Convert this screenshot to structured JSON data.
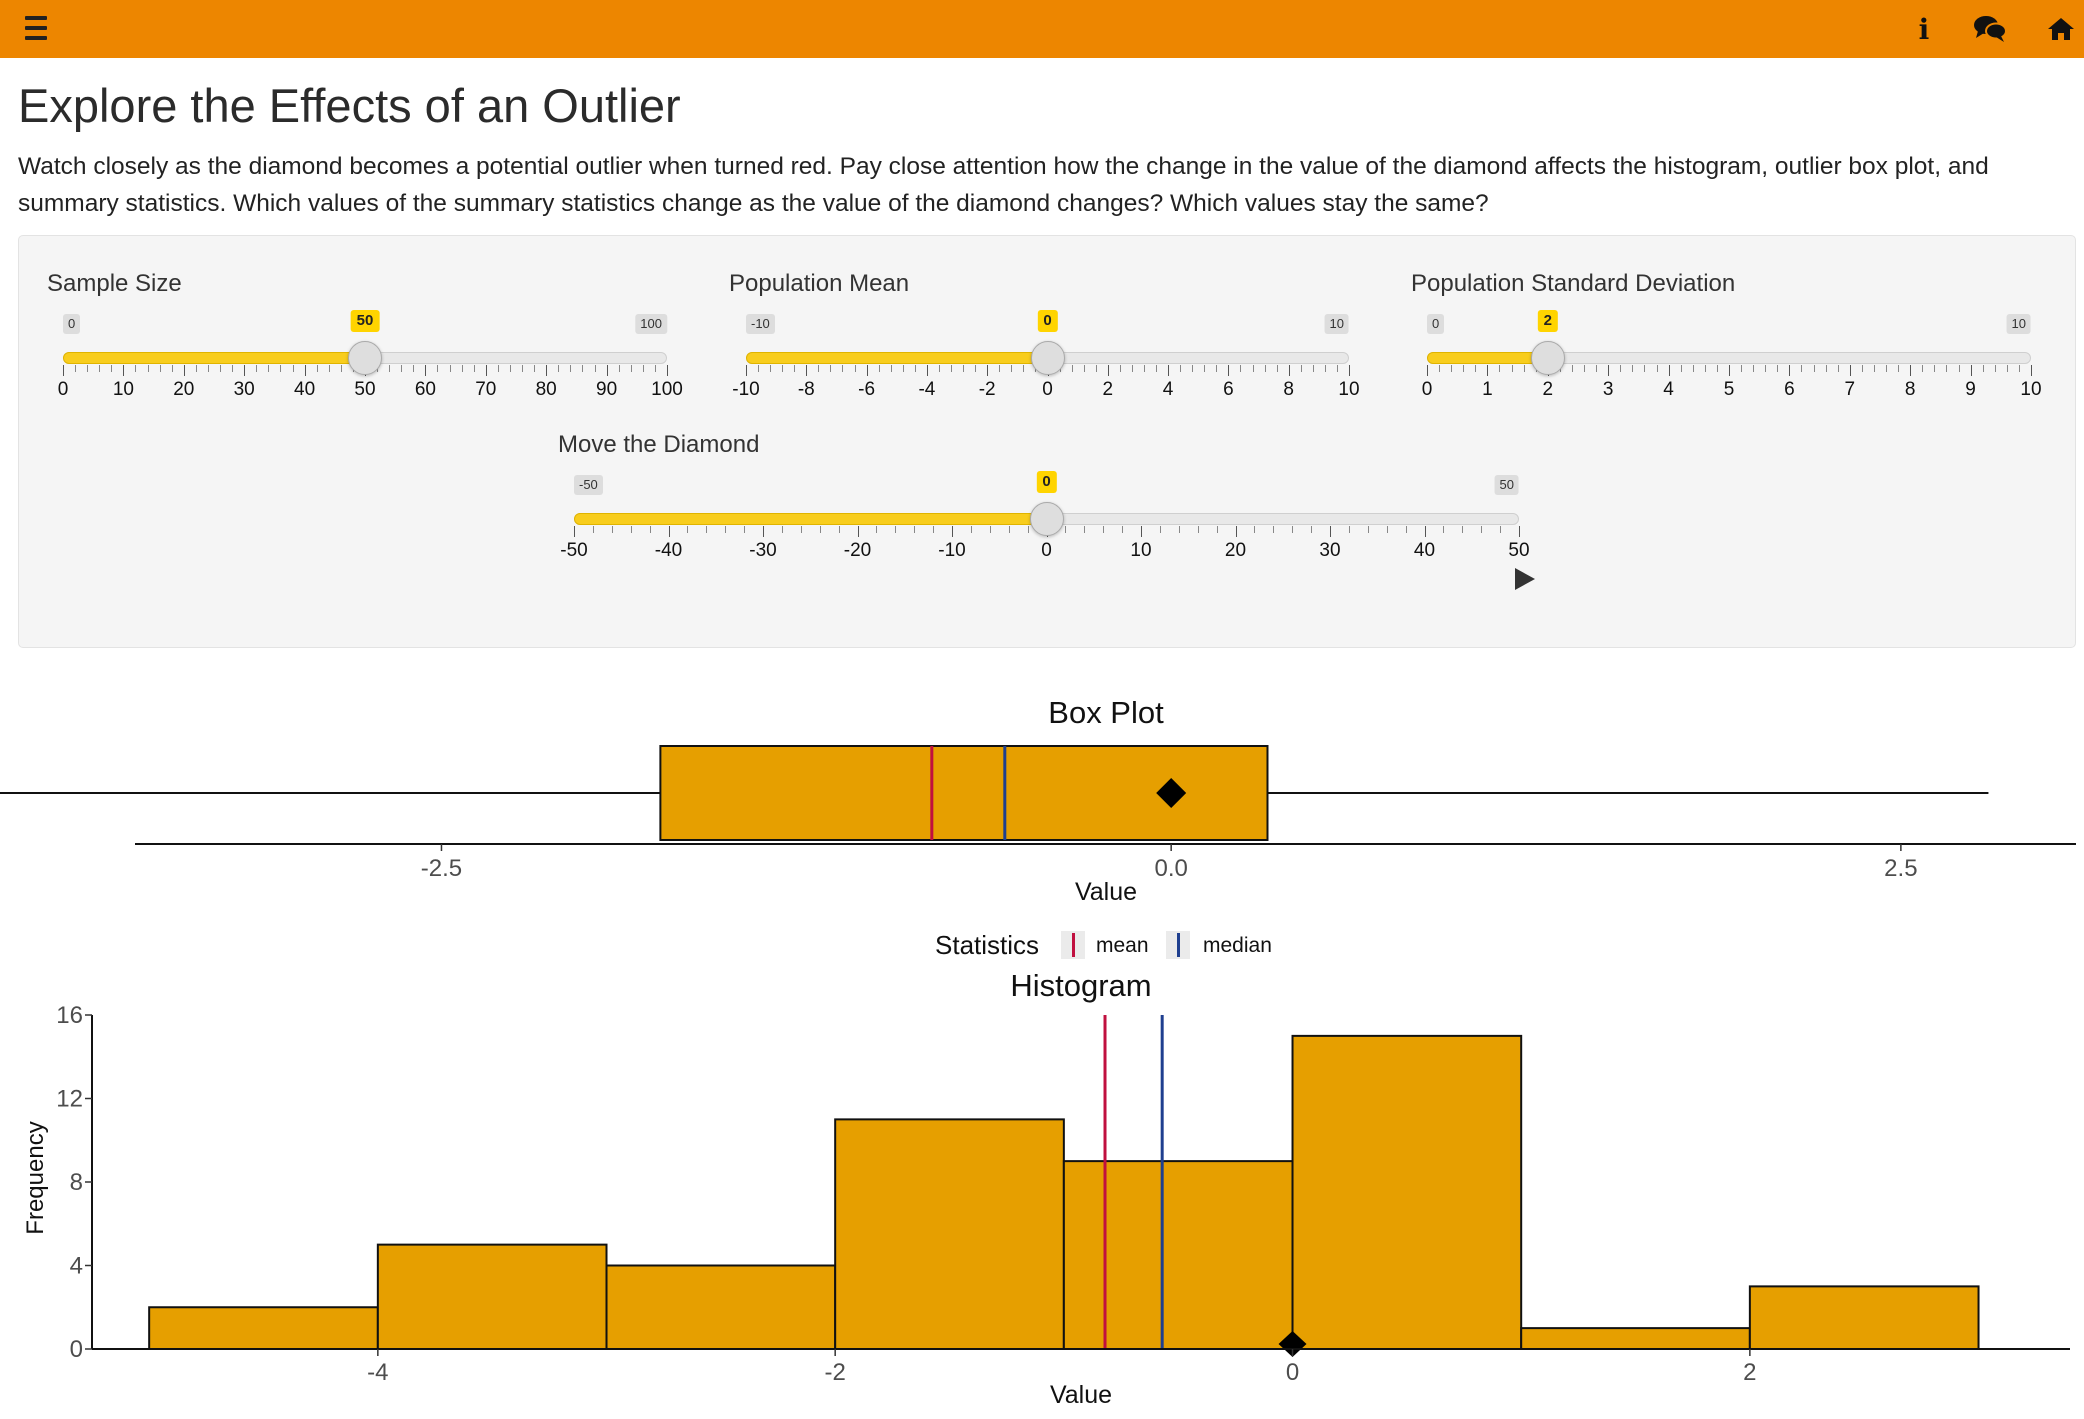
{
  "header": {
    "menu_icon": "hamburger-menu-icon",
    "info_icon": "info-icon",
    "info_glyph": "i",
    "chat_icon": "comments-icon",
    "home_icon": "home-icon",
    "bar_color": "#ED8600"
  },
  "page": {
    "title": "Explore the Effects of an Outlier",
    "description": "Watch closely as the diamond becomes a potential outlier when turned red. Pay close attention how the change in the value of the diamond affects the histogram, outlier box plot, and summary statistics. Which values of the summary statistics change as the value of the diamond changes? Which values stay the same?"
  },
  "controls": {
    "sample_size": {
      "label": "Sample Size",
      "min": 0,
      "max": 100,
      "value": 50,
      "min_label": "0",
      "max_label": "100",
      "value_label": "50",
      "ticks": [
        0,
        10,
        20,
        30,
        40,
        50,
        60,
        70,
        80,
        90,
        100
      ],
      "tick_labels": [
        "0",
        "10",
        "20",
        "30",
        "40",
        "50",
        "60",
        "70",
        "80",
        "90",
        "100"
      ]
    },
    "pop_mean": {
      "label": "Population Mean",
      "min": -10,
      "max": 10,
      "value": 0,
      "min_label": "-10",
      "max_label": "10",
      "value_label": "0",
      "ticks": [
        -10,
        -8,
        -6,
        -4,
        -2,
        0,
        2,
        4,
        6,
        8,
        10
      ],
      "tick_labels": [
        "-10",
        "-8",
        "-6",
        "-4",
        "-2",
        "0",
        "2",
        "4",
        "6",
        "8",
        "10"
      ]
    },
    "pop_sd": {
      "label": "Population Standard Deviation",
      "min": 0,
      "max": 10,
      "value": 2,
      "min_label": "0",
      "max_label": "10",
      "value_label": "2",
      "ticks": [
        0,
        1,
        2,
        3,
        4,
        5,
        6,
        7,
        8,
        9,
        10
      ],
      "tick_labels": [
        "0",
        "1",
        "2",
        "3",
        "4",
        "5",
        "6",
        "7",
        "8",
        "9",
        "10"
      ]
    },
    "diamond": {
      "label": "Move the Diamond",
      "min": -50,
      "max": 50,
      "value": 0,
      "min_label": "-50",
      "max_label": "50",
      "value_label": "0",
      "ticks": [
        -50,
        -40,
        -30,
        -20,
        -10,
        0,
        10,
        20,
        30,
        40,
        50
      ],
      "tick_labels": [
        "-50",
        "-40",
        "-30",
        "-20",
        "-10",
        "0",
        "10",
        "20",
        "30",
        "40",
        "50"
      ]
    },
    "play_icon": "play-icon",
    "slider_color": "#F8CD1D"
  },
  "chart_data": [
    {
      "type": "boxplot",
      "title": "Box Plot",
      "xlabel": "Value",
      "xlim": [
        -3.55,
        3.1
      ],
      "x_ticks": [
        -2.5,
        0.0,
        2.5
      ],
      "x_tick_labels": [
        "-2.5",
        "0.0",
        "2.5"
      ],
      "whisker_low": -4.4,
      "q1": -1.75,
      "median": -0.57,
      "q3": 0.33,
      "whisker_high": 2.8,
      "mean": -0.82,
      "diamond": 0,
      "fill": "#E69F00",
      "mean_color": "#C0103F",
      "median_color": "#1F3F8F"
    },
    {
      "type": "legend",
      "title": "Statistics",
      "entries": [
        {
          "name": "mean",
          "color": "#C0103F"
        },
        {
          "name": "median",
          "color": "#1F3F8F"
        }
      ]
    },
    {
      "type": "histogram",
      "title": "Histogram",
      "xlabel": "Value",
      "ylabel": "Frequency",
      "xlim": [
        -5.25,
        3.4
      ],
      "ylim": [
        0,
        16
      ],
      "x_ticks": [
        -4,
        -2,
        0,
        2
      ],
      "x_tick_labels": [
        "-4",
        "-2",
        "0",
        "2"
      ],
      "y_ticks": [
        0,
        4,
        8,
        12,
        16
      ],
      "y_tick_labels": [
        "0",
        "4",
        "8",
        "12",
        "16"
      ],
      "bins": [
        {
          "x0": -5,
          "x1": -4,
          "count": 2
        },
        {
          "x0": -4,
          "x1": -3,
          "count": 5
        },
        {
          "x0": -3,
          "x1": -2,
          "count": 4
        },
        {
          "x0": -2,
          "x1": -1,
          "count": 11
        },
        {
          "x0": -1,
          "x1": 0,
          "count": 9
        },
        {
          "x0": 0,
          "x1": 1,
          "count": 15
        },
        {
          "x0": 1,
          "x1": 2,
          "count": 1
        },
        {
          "x0": 2,
          "x1": 3,
          "count": 3
        }
      ],
      "mean": -0.82,
      "median": -0.57,
      "diamond": 0,
      "fill": "#E69F00"
    }
  ]
}
